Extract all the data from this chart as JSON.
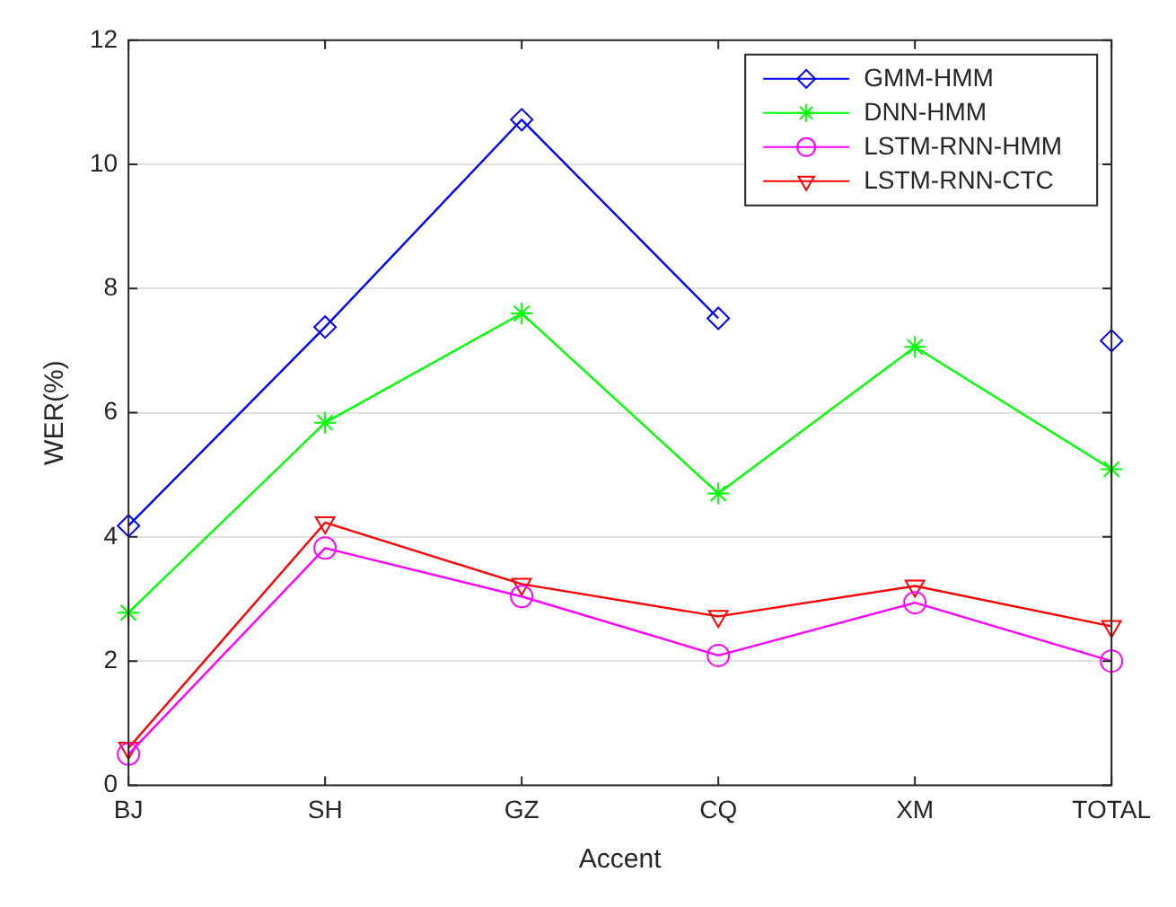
{
  "chart_data": {
    "type": "line",
    "xlabel": "Accent",
    "ylabel": "WER(%)",
    "categories": [
      "BJ",
      "SH",
      "GZ",
      "CQ",
      "XM",
      "TOTAL"
    ],
    "ylim": [
      0,
      12
    ],
    "yticks": [
      0,
      2,
      4,
      6,
      8,
      10,
      12
    ],
    "grid": "y",
    "legend": "top right",
    "line_style": "solid",
    "series": [
      {
        "name": "GMM-HMM",
        "color": "#0000ff",
        "marker": "diamond",
        "values": [
          4.18,
          7.38,
          10.72,
          7.52,
          null,
          7.16
        ]
      },
      {
        "name": "DNN-HMM",
        "color": "#00ff00",
        "marker": "cross",
        "values": [
          2.78,
          5.84,
          7.6,
          4.7,
          7.06,
          5.09
        ]
      },
      {
        "name": "LSTM-RNN-HMM",
        "color": "#ff00ff",
        "marker": "circle",
        "values": [
          0.5,
          3.82,
          3.04,
          2.09,
          2.94,
          2.0
        ]
      },
      {
        "name": "LSTM-RNN-CTC",
        "color": "#ff0000",
        "marker": "triangle",
        "values": [
          0.6,
          4.23,
          3.24,
          2.72,
          3.21,
          2.56
        ]
      }
    ]
  }
}
